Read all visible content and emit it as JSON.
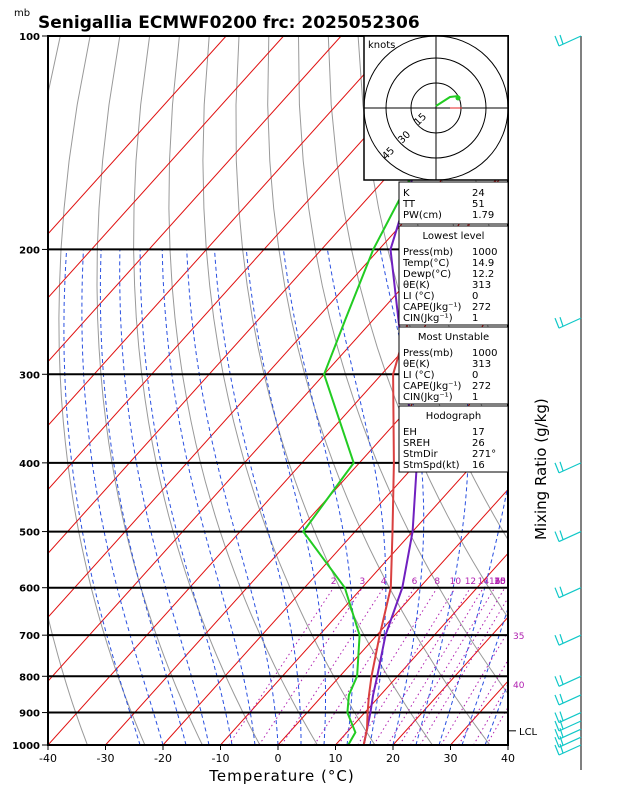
{
  "header": {
    "units_mb": "mb",
    "title": "Senigallia  ECMWF0200  frc: 2025052306"
  },
  "colors": {
    "temperature": "#d94040",
    "dewpoint": "#22cc22",
    "parcel": "#7020c0",
    "isotherm": "#e01010",
    "dry_adiabat": "#999999",
    "moist_adiabat": "#2a50e0",
    "mixing_ratio": "#b020b0",
    "wind": "#10c8c8"
  },
  "chart_data": {
    "type": "line",
    "xlabel": "Temperature (°C)",
    "ylabel": "Mixing Ratio (g/kg)",
    "xlim": [
      -40,
      40
    ],
    "ylim_mb": [
      1000,
      100
    ],
    "x_ticks": [
      "-40",
      "-30",
      "-20",
      "-10",
      "0",
      "10",
      "20",
      "30",
      "40"
    ],
    "p_ticks": [
      "100",
      "200",
      "300",
      "400",
      "500",
      "600",
      "700",
      "800",
      "900",
      "1000"
    ],
    "mixing_ratio_labels": [
      "2",
      "3",
      "4",
      "6",
      "8",
      "10",
      "12",
      "14",
      "16",
      "18",
      "20",
      "25",
      "30",
      "35",
      "40"
    ],
    "lcl_label": "LCL",
    "lcl_p": 955,
    "temperature_profile": [
      [
        1000,
        14.9
      ],
      [
        950,
        13
      ],
      [
        900,
        10.5
      ],
      [
        850,
        8
      ],
      [
        800,
        5.5
      ],
      [
        700,
        0.5
      ],
      [
        600,
        -5
      ],
      [
        500,
        -13.5
      ],
      [
        400,
        -24
      ],
      [
        300,
        -38
      ],
      [
        250,
        -44
      ],
      [
        200,
        -47
      ],
      [
        100,
        -58
      ]
    ],
    "dewpoint_profile": [
      [
        1000,
        12.2
      ],
      [
        960,
        11.5
      ],
      [
        900,
        7
      ],
      [
        850,
        4.5
      ],
      [
        800,
        3
      ],
      [
        700,
        -3
      ],
      [
        600,
        -13
      ],
      [
        500,
        -29
      ],
      [
        400,
        -31
      ],
      [
        300,
        -50
      ],
      [
        250,
        -55
      ],
      [
        200,
        -61
      ],
      [
        100,
        -75
      ]
    ],
    "parcel_profile": [
      [
        1000,
        14.9
      ],
      [
        955,
        13.2
      ],
      [
        900,
        11
      ],
      [
        850,
        8.7
      ],
      [
        800,
        6.5
      ],
      [
        700,
        1.5
      ],
      [
        600,
        -3
      ],
      [
        500,
        -10
      ],
      [
        400,
        -20
      ],
      [
        300,
        -36
      ],
      [
        200,
        -58
      ],
      [
        100,
        -80
      ]
    ],
    "wind_barb_pressures": [
      1000,
      975,
      950,
      925,
      900,
      850,
      800,
      700,
      600,
      500,
      400,
      250,
      100
    ]
  },
  "hodograph": {
    "units": "knots",
    "ring_labels": [
      "15",
      "30",
      "45"
    ]
  },
  "indices": [
    {
      "label": "K",
      "value": "24"
    },
    {
      "label": "TT",
      "value": "51"
    },
    {
      "label": "PW(cm)",
      "value": "1.79"
    }
  ],
  "lowest_level": {
    "heading": "Lowest level",
    "rows": [
      {
        "label": "Press(mb)",
        "value": "1000"
      },
      {
        "label": "Temp(°C)",
        "value": "14.9"
      },
      {
        "label": "Dewp(°C)",
        "value": "12.2"
      },
      {
        "label": "θE(K)",
        "value": "313"
      },
      {
        "label": "LI (°C)",
        "value": "0"
      },
      {
        "label": "CAPE(Jkg⁻¹)",
        "value": "272"
      },
      {
        "label": "CIN(Jkg⁻¹)",
        "value": "1"
      }
    ]
  },
  "most_unstable": {
    "heading": "Most Unstable",
    "rows": [
      {
        "label": "Press(mb)",
        "value": "1000"
      },
      {
        "label": "θE(K)",
        "value": "313"
      },
      {
        "label": "LI (°C)",
        "value": "0"
      },
      {
        "label": "CAPE(Jkg⁻¹)",
        "value": "272"
      },
      {
        "label": "CIN(Jkg⁻¹)",
        "value": "1"
      }
    ]
  },
  "hodograph_stats": {
    "heading": "Hodograph",
    "rows": [
      {
        "label": "EH",
        "value": "17"
      },
      {
        "label": "SREH",
        "value": "26"
      },
      {
        "label": "StmDir",
        "value": "271°"
      },
      {
        "label": "StmSpd(kt)",
        "value": "16"
      }
    ]
  }
}
